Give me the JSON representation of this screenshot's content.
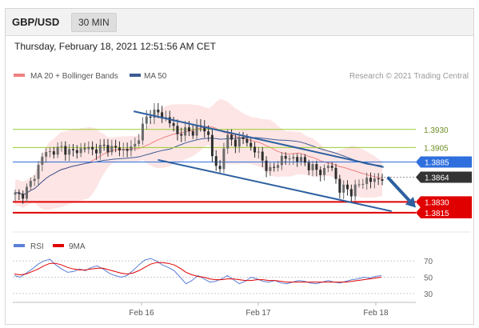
{
  "header": {
    "symbol": "GBP/USD",
    "timeframe": "30 MIN"
  },
  "datetime": "Thursday, February 18, 2021 12:51:56 AM CET",
  "legend": {
    "bb_label": "MA 20 + Bollinger Bands",
    "ma50_label": "MA 50",
    "credit": "Research © 2021 Trading Central",
    "rsi_label": "RSI",
    "ma9_label": "9MA"
  },
  "colors": {
    "bollinger": "#f08080",
    "band_fill": "#fde0e0",
    "ma50": "#3b5b94",
    "up_candle": "#6b6b6b",
    "down_candle": "#2e2e2e",
    "support_resistance_green": "#9acd32",
    "current_level": "#2f6fde",
    "red_level": "#e00000",
    "trend_arrow": "#2c5fa0",
    "rsi": "#5b7fd6",
    "rsi_ma": "#e00000"
  },
  "chart_data": [
    {
      "type": "line",
      "title": "GBP/USD 30 MIN",
      "xlabel": "",
      "ylabel": "",
      "x_ticks": [
        "Feb 16",
        "Feb 17",
        "Feb 18"
      ],
      "ylim": [
        1.3795,
        1.3985
      ],
      "price_levels": [
        {
          "value": 1.393,
          "label": "1.3930",
          "color": "#9acd32",
          "kind": "resistance"
        },
        {
          "value": 1.3905,
          "label": "1.3905",
          "color": "#9acd32",
          "kind": "resistance"
        },
        {
          "value": 1.3885,
          "label": "1.3885",
          "color": "#2f6fde",
          "kind": "pivot"
        },
        {
          "value": 1.3864,
          "label": "1.3864",
          "color": "#333333",
          "kind": "last-price"
        },
        {
          "value": 1.383,
          "label": "1.3830",
          "color": "#e00000",
          "kind": "support"
        },
        {
          "value": 1.3815,
          "label": "1.3815",
          "color": "#e00000",
          "kind": "support"
        }
      ],
      "series": [
        {
          "name": "MA 20 + Bollinger Bands",
          "style": "band"
        },
        {
          "name": "MA 50",
          "style": "line"
        }
      ],
      "price_path": [
        1.384,
        1.3838,
        1.3845,
        1.3856,
        1.3872,
        1.389,
        1.39,
        1.3898,
        1.3902,
        1.3905,
        1.39,
        1.3898,
        1.3903,
        1.3902,
        1.3905,
        1.39,
        1.3904,
        1.3906,
        1.3905,
        1.3902,
        1.3905,
        1.39,
        1.3904,
        1.391,
        1.3928,
        1.3945,
        1.3955,
        1.3953,
        1.3948,
        1.3945,
        1.3935,
        1.3922,
        1.393,
        1.3925,
        1.3928,
        1.3935,
        1.393,
        1.392,
        1.3878,
        1.3872,
        1.392,
        1.3915,
        1.3912,
        1.3918,
        1.3914,
        1.3905,
        1.39,
        1.3888,
        1.3878,
        1.387,
        1.3885,
        1.3892,
        1.3888,
        1.3892,
        1.3889,
        1.3885,
        1.388,
        1.3876,
        1.387,
        1.3875,
        1.3883,
        1.3865,
        1.3845,
        1.385,
        1.3843,
        1.385,
        1.3856,
        1.3862,
        1.3858,
        1.3861,
        1.3864
      ],
      "annotations": {
        "upper_trendline": {
          "from": [
            0.3,
            1.3955
          ],
          "to": [
            0.92,
            1.3878
          ]
        },
        "lower_trendline": {
          "from": [
            0.36,
            1.3888
          ],
          "to": [
            0.94,
            1.3817
          ]
        },
        "forecast_arrow": {
          "from": [
            0.93,
            1.3864
          ],
          "to": [
            1.0,
            1.3822
          ]
        }
      }
    },
    {
      "type": "line",
      "title": "RSI",
      "ylim": [
        25,
        78
      ],
      "y_ticks": [
        70,
        50,
        30
      ],
      "levels": [
        70,
        50,
        30
      ],
      "series": [
        {
          "name": "RSI",
          "values": [
            52,
            50,
            55,
            60,
            66,
            70,
            72,
            65,
            60,
            56,
            57,
            60,
            58,
            62,
            64,
            60,
            55,
            52,
            50,
            52,
            58,
            65,
            71,
            73,
            70,
            65,
            62,
            58,
            50,
            42,
            46,
            52,
            48,
            44,
            45,
            48,
            52,
            47,
            42,
            45,
            50,
            48,
            45,
            44,
            46,
            43,
            42,
            44,
            46,
            45,
            43,
            42,
            44,
            46,
            44,
            43,
            45,
            47,
            48,
            50,
            49,
            51,
            52
          ]
        },
        {
          "name": "9MA",
          "values": [
            54,
            53,
            54,
            57,
            60,
            64,
            67,
            67,
            65,
            62,
            60,
            59,
            59,
            60,
            61,
            61,
            59,
            57,
            55,
            54,
            55,
            58,
            62,
            66,
            68,
            68,
            67,
            65,
            61,
            56,
            53,
            51,
            50,
            48,
            47,
            47,
            48,
            48,
            47,
            46,
            46,
            47,
            47,
            46,
            46,
            45,
            44,
            44,
            44,
            44,
            44,
            44,
            44,
            44,
            44,
            44,
            44,
            45,
            46,
            47,
            48,
            49,
            50
          ]
        }
      ]
    }
  ]
}
